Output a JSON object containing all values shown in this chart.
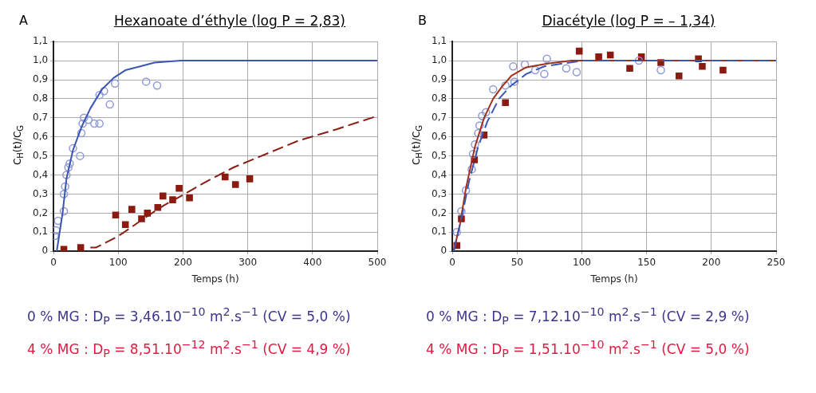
{
  "chart_data": [
    {
      "type": "scatter",
      "title": "Hexanoate d’éthyle (log P = 2,83)",
      "xlabel": "Temps (h)",
      "ylabel": "C$_{H}$(t)/C$_{G}$",
      "annotations": [
        "A",
        "0 % MG : D$_{P}$ = 3,46.10$^{−10}$ m$^{2}$.s$^{−1}$ (CV = 5,0 %)",
        "4 % MG : D$_{P}$ = 8,51.10$^{−12}$ m$^{2}$.s$^{−1}$ (CV = 4,9 %)"
      ],
      "xlim": [
        0,
        500
      ],
      "xticks": [
        0,
        100,
        200,
        300,
        400,
        500
      ],
      "ylim": [
        0,
        1.1
      ],
      "yticks": [
        0,
        {
          "value": 0.1,
          "label": "0,1"
        },
        {
          "value": 0.2,
          "label": "0,2"
        },
        {
          "value": 0.3,
          "label": "0,3"
        },
        {
          "value": 0.4,
          "label": "0,4"
        },
        {
          "value": 0.5,
          "label": "0,5"
        },
        {
          "value": 0.6,
          "label": "0,6"
        },
        {
          "value": 0.7,
          "label": "0,7"
        },
        {
          "value": 0.8,
          "label": "0,8"
        },
        {
          "value": 0.9,
          "label": "0,9"
        },
        {
          "value": 1.0,
          "label": "1,0"
        },
        {
          "value": 1.1,
          "label": "1,1"
        }
      ],
      "grid": true,
      "legend": false,
      "series": [
        {
          "type": "line",
          "color": "#3a55b4",
          "line_style": "solid",
          "marker": "none",
          "x": [
            5,
            14,
            20,
            30,
            43,
            57,
            75,
            93,
            111,
            134,
            156,
            197,
            500
          ],
          "values": [
            0,
            0.2,
            0.38,
            0.53,
            0.65,
            0.75,
            0.85,
            0.91,
            0.95,
            0.97,
            0.99,
            1.0,
            1.0
          ]
        },
        {
          "type": "line",
          "color": "#8b1e12",
          "line_style": "dashed",
          "marker": "none",
          "x": [
            57,
            66,
            95,
            109,
            143,
            170,
            197,
            233,
            278,
            328,
            378,
            437,
            500
          ],
          "values": [
            0.02,
            0.02,
            0.07,
            0.1,
            0.18,
            0.24,
            0.29,
            0.36,
            0.44,
            0.51,
            0.58,
            0.64,
            0.71
          ]
        },
        {
          "type": "scatter",
          "color": "#8f9ad8",
          "marker": "circle",
          "x": [
            2,
            4,
            7,
            16,
            16,
            18,
            20,
            23,
            25,
            30,
            41,
            43,
            45,
            47,
            54,
            63,
            71,
            71,
            78,
            87,
            95,
            143,
            160
          ],
          "values": [
            0.08,
            0.11,
            0.16,
            0.21,
            0.3,
            0.34,
            0.4,
            0.44,
            0.46,
            0.54,
            0.5,
            0.62,
            0.67,
            0.7,
            0.69,
            0.67,
            0.67,
            0.82,
            0.84,
            0.77,
            0.88,
            0.89,
            0.87
          ]
        },
        {
          "type": "scatter",
          "color": "#8b1a10",
          "marker": "square",
          "x": [
            16,
            42,
            96,
            111,
            121,
            136,
            145,
            161,
            169,
            184,
            194,
            210,
            265,
            281,
            303
          ],
          "values": [
            0.01,
            0.02,
            0.19,
            0.14,
            0.22,
            0.17,
            0.2,
            0.23,
            0.29,
            0.27,
            0.33,
            0.28,
            0.39,
            0.35,
            0.38
          ]
        }
      ]
    },
    {
      "type": "scatter",
      "title": "Diacétyle (log P = – 1,34)",
      "xlabel": "Temps (h)",
      "ylabel": "C$_{H}$(t)/C$_{G}$",
      "annotations": [
        "B",
        "0 % MG : D$_{P}$ = 7,12.10$^{−10}$ m$^{2}$.s$^{−1}$ (CV = 2,9 %)",
        "4 % MG : D$_{P}$ = 1,51.10$^{−10}$ m$^{2}$.s$^{−1}$ (CV = 5,0 %)"
      ],
      "xlim": [
        0,
        250
      ],
      "xticks": [
        0,
        50,
        100,
        150,
        200,
        250
      ],
      "ylim": [
        0,
        1.1
      ],
      "yticks": [
        0,
        {
          "value": 0.1,
          "label": "0,1"
        },
        {
          "value": 0.2,
          "label": "0,2"
        },
        {
          "value": 0.3,
          "label": "0,3"
        },
        {
          "value": 0.4,
          "label": "0,4"
        },
        {
          "value": 0.5,
          "label": "0,5"
        },
        {
          "value": 0.6,
          "label": "0,6"
        },
        {
          "value": 0.7,
          "label": "0,7"
        },
        {
          "value": 0.8,
          "label": "0,8"
        },
        {
          "value": 0.9,
          "label": "0,9"
        },
        {
          "value": 1.0,
          "label": "1,0"
        },
        {
          "value": 1.1,
          "label": "1,1"
        }
      ],
      "grid": true,
      "legend": false,
      "series": [
        {
          "type": "line",
          "color": "#3a55b4",
          "line_style": "dashed",
          "marker": "none",
          "x": [
            1,
            7,
            13,
            20,
            27,
            36,
            45.5,
            57,
            71,
            85,
            101.5,
            250
          ],
          "values": [
            0,
            0.17,
            0.37,
            0.55,
            0.68,
            0.8,
            0.87,
            0.93,
            0.97,
            0.985,
            1.0,
            1.0
          ]
        },
        {
          "type": "line",
          "color": "#a3301c",
          "line_style": "solid",
          "marker": "none",
          "x": [
            1,
            6,
            10.5,
            17.5,
            24.5,
            31.5,
            38.5,
            45.5,
            57,
            73.5,
            92,
            250
          ],
          "values": [
            0,
            0.145,
            0.33,
            0.55,
            0.7,
            0.8,
            0.865,
            0.92,
            0.965,
            0.985,
            1.0,
            1.0
          ]
        },
        {
          "type": "scatter",
          "color": "#8f9ad8",
          "marker": "circle",
          "x": [
            3.5,
            7,
            10.5,
            15,
            16,
            17.5,
            20,
            21,
            23,
            26,
            31.5,
            41,
            48,
            47,
            56,
            64,
            71,
            73,
            88,
            96,
            144,
            161
          ],
          "values": [
            0.1,
            0.21,
            0.32,
            0.43,
            0.51,
            0.56,
            0.62,
            0.66,
            0.71,
            0.73,
            0.85,
            0.87,
            0.89,
            0.97,
            0.98,
            0.95,
            0.93,
            1.01,
            0.96,
            0.94,
            1.0,
            0.95
          ]
        },
        {
          "type": "scatter",
          "color": "#8b1a10",
          "marker": "square",
          "x": [
            3.5,
            7,
            17,
            24.5,
            41,
            98,
            113,
            122,
            137,
            146,
            161,
            175,
            190,
            193,
            209
          ],
          "values": [
            0.03,
            0.17,
            0.48,
            0.61,
            0.78,
            1.05,
            1.02,
            1.03,
            0.96,
            1.02,
            0.99,
            0.92,
            1.01,
            0.97,
            0.95
          ]
        }
      ]
    }
  ]
}
